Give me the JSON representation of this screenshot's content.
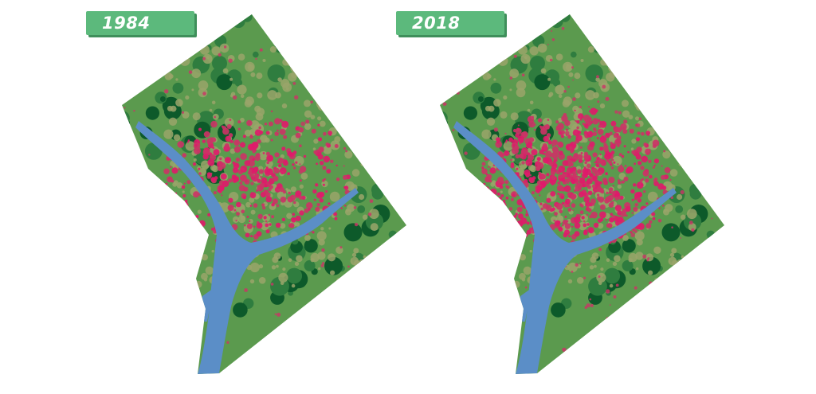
{
  "maps": [
    {
      "year_label": "1984",
      "urban_density": 0.55
    },
    {
      "year_label": "2018",
      "urban_density": 1.0
    }
  ],
  "colors": {
    "label_bg": "#5cb97c",
    "label_shadow": "#3f8f5b",
    "forest_dark": "#0d5a2a",
    "forest": "#2f7d3f",
    "vegetation": "#5b9a4e",
    "mixed": "#9aa46a",
    "urban": "#cc3366",
    "urban_dense": "#e0196a",
    "water": "#5b8ec7"
  }
}
